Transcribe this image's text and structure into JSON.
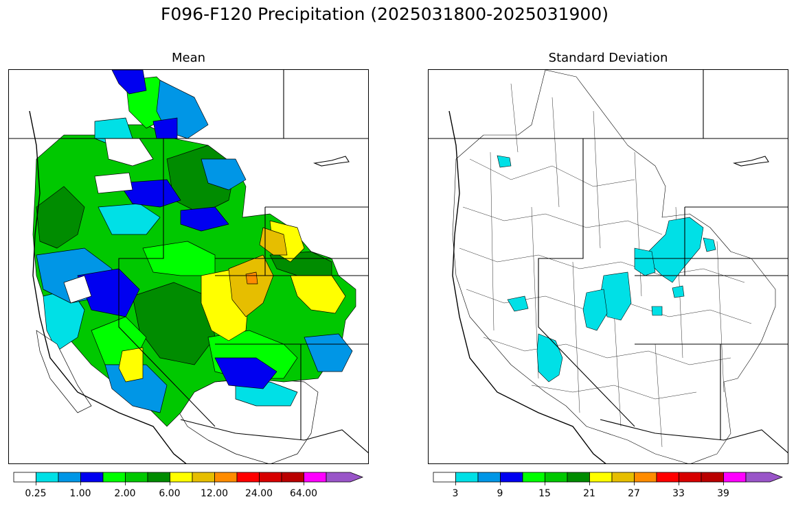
{
  "title": "F096-F120 Precipitation (2025031800-2025031900)",
  "panels": [
    {
      "title": "Mean",
      "colorbar": {
        "colors": [
          "#ffffff",
          "#00e0e6",
          "#0096e6",
          "#0000f0",
          "#00ff00",
          "#00c800",
          "#008c00",
          "#ffff00",
          "#e6be00",
          "#ff8c00",
          "#ff0000",
          "#d70000",
          "#b90000",
          "#ff00ff",
          "#9955c8"
        ],
        "tick_labels": [
          "0.25",
          "1.00",
          "2.00",
          "6.00",
          "12.00",
          "24.00",
          "64.00"
        ],
        "extend": "max"
      }
    },
    {
      "title": "Standard Deviation",
      "colorbar": {
        "colors": [
          "#ffffff",
          "#00e0e6",
          "#0096e6",
          "#0000f0",
          "#00ff00",
          "#00c800",
          "#008c00",
          "#ffff00",
          "#e6be00",
          "#ff8c00",
          "#ff0000",
          "#d70000",
          "#b90000",
          "#ff00ff",
          "#9955c8"
        ],
        "tick_labels": [
          "3",
          "9",
          "15",
          "21",
          "27",
          "33",
          "39"
        ],
        "extend": "max"
      }
    }
  ]
}
